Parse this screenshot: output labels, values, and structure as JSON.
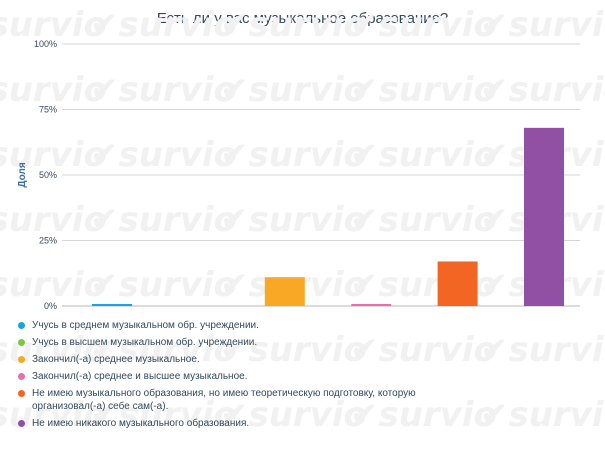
{
  "chart_data": {
    "type": "bar",
    "title": "Есть ли у вас музыкальное образование?",
    "ylabel": "Доля",
    "xlabel": "",
    "ylim": [
      0,
      100
    ],
    "yticks": [
      "0%",
      "25%",
      "50%",
      "75%",
      "100%"
    ],
    "ytick_values": [
      0,
      25,
      50,
      75,
      100
    ],
    "grid": true,
    "legend_position": "bottom",
    "categories": [
      "Учусь в среднем музыкальном обр. учреждении.",
      "Учусь в высшем музыкальном обр. учреждении.",
      "Закончил(-а) среднее музыкальное.",
      "Закончил(-а) среднее и высшее музыкальное.",
      "Не имею музыкального образования, но имею теоретическую подготовку, которую организовал(-а) себе сам(-а).",
      "Не имею никакого музыкального образования."
    ],
    "values": [
      0.6,
      0,
      11,
      0.6,
      17,
      68
    ],
    "colors": [
      "#1aa3e0",
      "#7cc93c",
      "#f9a825",
      "#e96fab",
      "#f36523",
      "#9150a3"
    ]
  },
  "watermark": {
    "text": "survio",
    "color": "#f1f1f1"
  },
  "legend_lines": [
    [
      "Учусь в среднем музыкальном обр. учреждении."
    ],
    [
      "Учусь в высшем музыкальном обр. учреждении."
    ],
    [
      "Закончил(-а) среднее музыкальное."
    ],
    [
      "Закончил(-а) среднее и высшее музыкальное."
    ],
    [
      "Не имею музыкального образования, но имею теоретическую подготовку, которую",
      "организовал(-а) себе сам(-а)."
    ],
    [
      "Не имею никакого музыкального образования."
    ]
  ]
}
